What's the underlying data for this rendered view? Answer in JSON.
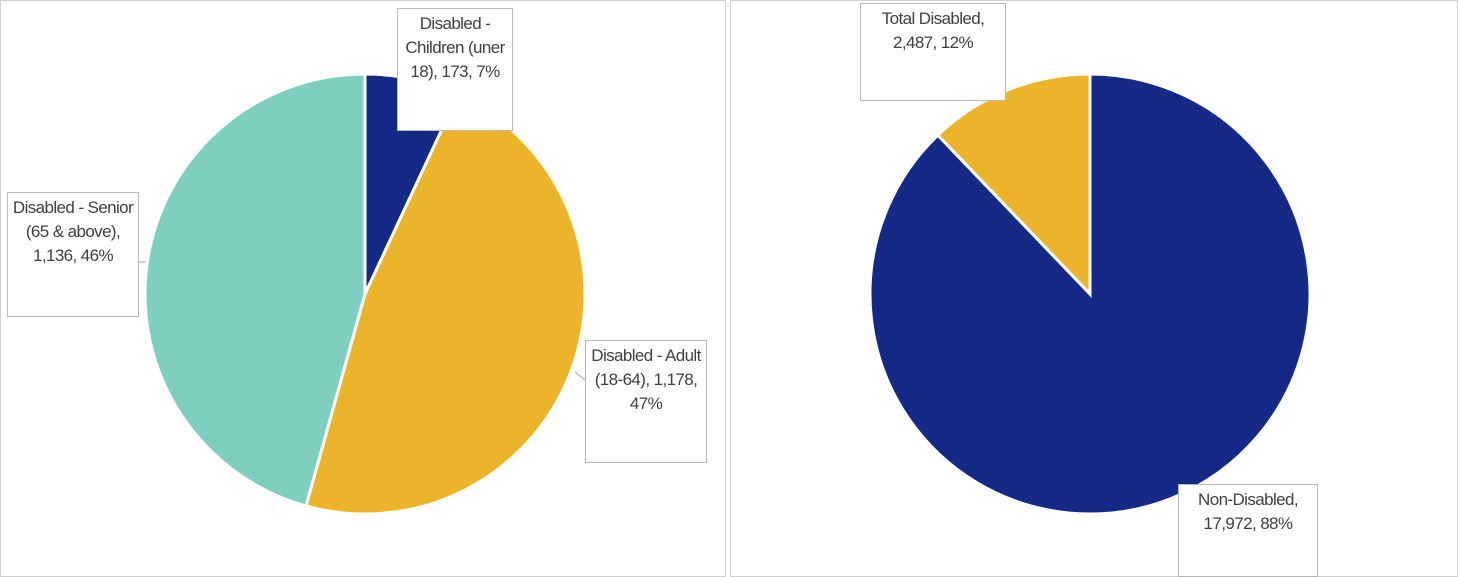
{
  "chart_data": [
    {
      "type": "pie",
      "categories": [
        "Disabled - Children (uner 18)",
        "Disabled - Adult (18-64)",
        "Disabled - Senior (65 & above)"
      ],
      "values": [
        173,
        1178,
        1136
      ],
      "value_labels": [
        "173",
        "1,178",
        "1,136"
      ],
      "percent_labels": [
        "7%",
        "47%",
        "46%"
      ],
      "label_separator": ", ",
      "colors": [
        "#142a86",
        "#ecb42a",
        "#7fcfc0"
      ]
    },
    {
      "type": "pie",
      "categories": [
        "Non-Disabled",
        "Total Disabled"
      ],
      "values": [
        17972,
        2487
      ],
      "value_labels": [
        "17,972",
        "2,487"
      ],
      "percent_labels": [
        "88%",
        "12%"
      ],
      "label_separator": ", ",
      "colors": [
        "#142a86",
        "#ecb42a"
      ]
    }
  ]
}
